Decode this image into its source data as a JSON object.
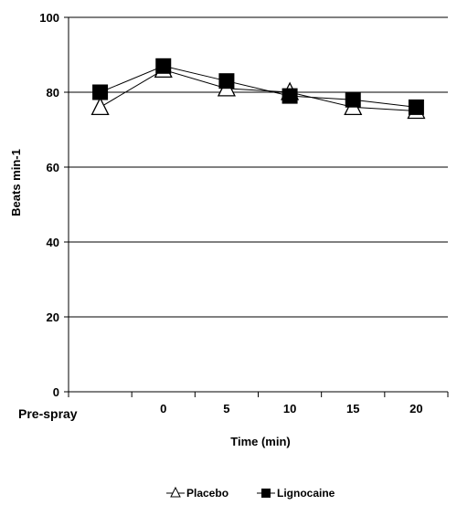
{
  "chart_data": {
    "type": "line",
    "title": "",
    "xlabel": "Time (min)",
    "ylabel": "Beats min-1",
    "categories": [
      "Pre-spray",
      "0",
      "5",
      "10",
      "15",
      "20"
    ],
    "ylim": [
      0,
      100
    ],
    "yticks": [
      0,
      20,
      40,
      60,
      80,
      100
    ],
    "grid": true,
    "legend_placement": "bottom",
    "series": [
      {
        "name": "Placebo",
        "marker": "open-triangle",
        "values": [
          76,
          86,
          81,
          80,
          76,
          75
        ]
      },
      {
        "name": "Lignocaine",
        "marker": "filled-square",
        "values": [
          80,
          87,
          83,
          79,
          78,
          76
        ]
      }
    ],
    "colors": {
      "line": "#000000",
      "grid": "#000000",
      "background": "#ffffff"
    }
  }
}
